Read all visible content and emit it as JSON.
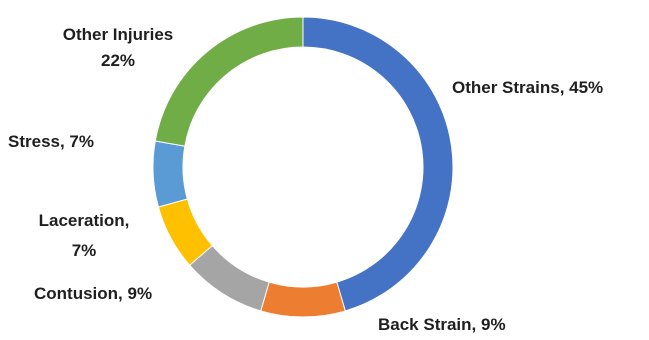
{
  "chart_data": {
    "type": "pie",
    "variant": "donut",
    "start_angle_deg": 0,
    "direction": "clockwise",
    "slices": [
      {
        "label": "Other Strains",
        "value": 45,
        "color": "#4472C4"
      },
      {
        "label": "Back Strain",
        "value": 9,
        "color": "#ED7D31"
      },
      {
        "label": "Contusion",
        "value": 9,
        "color": "#A5A5A5"
      },
      {
        "label": "Laceration",
        "value": 7,
        "color": "#FFC000"
      },
      {
        "label": "Stress",
        "value": 7,
        "color": "#5B9BD5"
      },
      {
        "label": "Other Injuries",
        "value": 22,
        "color": "#70AD47"
      }
    ],
    "data_labels": [
      {
        "lines": [
          "Other Strains, 45%"
        ]
      },
      {
        "lines": [
          "Back Strain, 9%"
        ]
      },
      {
        "lines": [
          "Contusion, 9%"
        ]
      },
      {
        "lines": [
          "Laceration,",
          "7%"
        ]
      },
      {
        "lines": [
          "Stress, 7%"
        ]
      },
      {
        "lines": [
          "Other Injuries",
          "22%"
        ]
      }
    ],
    "title": "",
    "legend": "none"
  }
}
